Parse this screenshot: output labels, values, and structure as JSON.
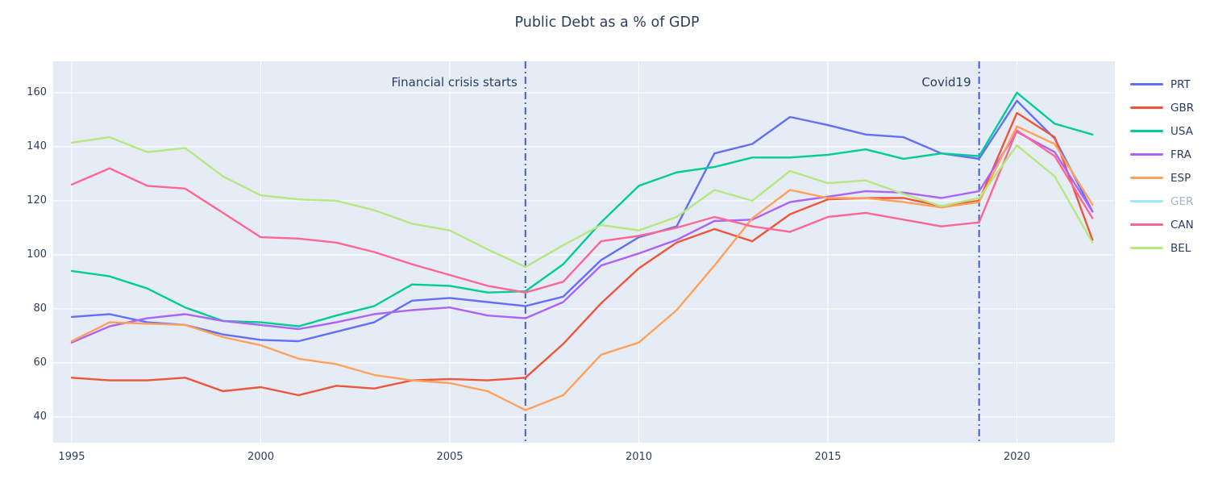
{
  "title": "Public Debt as a % of GDP",
  "colors": {
    "paper_bg": "#ffffff",
    "plot_bg": "#e5ecf6",
    "grid": "#ffffff",
    "text": "#2a3f5f",
    "vline": "#4a5ccc",
    "muted_legend_text": "#a9b4c9"
  },
  "chart_data": {
    "type": "line",
    "title": "Public Debt as a % of GDP",
    "xlabel": "",
    "ylabel": "",
    "grid": true,
    "legend_position": "right",
    "xlim": [
      1994.51,
      2022.59
    ],
    "ylim": [
      30.4,
      171.6
    ],
    "xticks": [
      1995,
      2000,
      2005,
      2010,
      2015,
      2020
    ],
    "yticks": [
      40,
      60,
      80,
      100,
      120,
      140,
      160
    ],
    "x": [
      1995,
      1996,
      1997,
      1998,
      1999,
      2000,
      2001,
      2002,
      2003,
      2004,
      2005,
      2006,
      2007,
      2008,
      2009,
      2010,
      2011,
      2012,
      2013,
      2014,
      2015,
      2016,
      2017,
      2018,
      2019,
      2020,
      2021,
      2022
    ],
    "series": [
      {
        "name": "PRT",
        "color": "#636efa",
        "hidden": false,
        "values": [
          77,
          78,
          75,
          74,
          70.5,
          68.5,
          68,
          71.5,
          75,
          83,
          84,
          82.5,
          81,
          84.5,
          98,
          106.5,
          110.5,
          137.5,
          141,
          151,
          148,
          144.5,
          143.5,
          137.5,
          135.5,
          157,
          143,
          116
        ]
      },
      {
        "name": "GBR",
        "color": "#ef553b",
        "hidden": false,
        "values": [
          54.5,
          53.5,
          53.5,
          54.5,
          49.5,
          51,
          48,
          51.5,
          50.5,
          53.5,
          54,
          53.5,
          54.5,
          67,
          82,
          95,
          104.5,
          109.5,
          105,
          115,
          120.5,
          121,
          121,
          118,
          120,
          152.5,
          143.5,
          105.5
        ]
      },
      {
        "name": "USA",
        "color": "#00cc96",
        "hidden": false,
        "values": [
          94,
          92,
          87.5,
          80.5,
          75.5,
          75,
          73.5,
          77.5,
          81,
          89,
          88.5,
          86,
          86.5,
          96.5,
          112,
          125.5,
          130.5,
          132.5,
          136,
          136,
          137,
          139,
          135.5,
          137.5,
          136.5,
          160,
          148.5,
          144.5
        ]
      },
      {
        "name": "FRA",
        "color": "#ab63fa",
        "hidden": false,
        "values": [
          67.5,
          73.5,
          76.5,
          78,
          75.5,
          74,
          72.5,
          75,
          78,
          79.5,
          80.5,
          77.5,
          76.5,
          82.5,
          96,
          100.5,
          105.5,
          112.5,
          113,
          119.5,
          121.5,
          123.5,
          123,
          121,
          123.5,
          145.5,
          138,
          116
        ]
      },
      {
        "name": "ESP",
        "color": "#ffa15a",
        "hidden": false,
        "values": [
          68,
          75,
          74.5,
          74,
          69.5,
          66.5,
          61.5,
          59.5,
          55.5,
          53.5,
          52.5,
          49.5,
          42.5,
          48,
          63,
          67.5,
          79.5,
          96,
          113.5,
          124,
          121,
          121,
          119.5,
          117.5,
          119.5,
          147.5,
          141,
          118.5
        ]
      },
      {
        "name": "GER",
        "color": "#19d3f3",
        "hidden": true,
        "values": []
      },
      {
        "name": "CAN",
        "color": "#ff6692",
        "hidden": false,
        "values": [
          126,
          132,
          125.5,
          124.5,
          115.5,
          106.5,
          106,
          104.5,
          101,
          96.5,
          92.5,
          88.5,
          86,
          90,
          105,
          107,
          110,
          114,
          110.5,
          108.5,
          114,
          115.5,
          113,
          110.5,
          112,
          146,
          136.5,
          113.5
        ]
      },
      {
        "name": "BEL",
        "color": "#b6e880",
        "hidden": false,
        "values": [
          141.5,
          143.5,
          138,
          139.5,
          129,
          122,
          120.5,
          120,
          116.5,
          111.5,
          109,
          102,
          95.5,
          103.5,
          111,
          109,
          114,
          124,
          120,
          131,
          126.5,
          127.5,
          122.5,
          118,
          121,
          140.5,
          129,
          104.5
        ]
      }
    ],
    "annotations": [
      {
        "text": "Financial crisis starts",
        "year": 2007
      },
      {
        "text": "Covid19",
        "year": 2019
      }
    ],
    "vlines": [
      {
        "year": 2007,
        "style": "dashdot"
      },
      {
        "year": 2019,
        "style": "dashdot"
      }
    ]
  }
}
